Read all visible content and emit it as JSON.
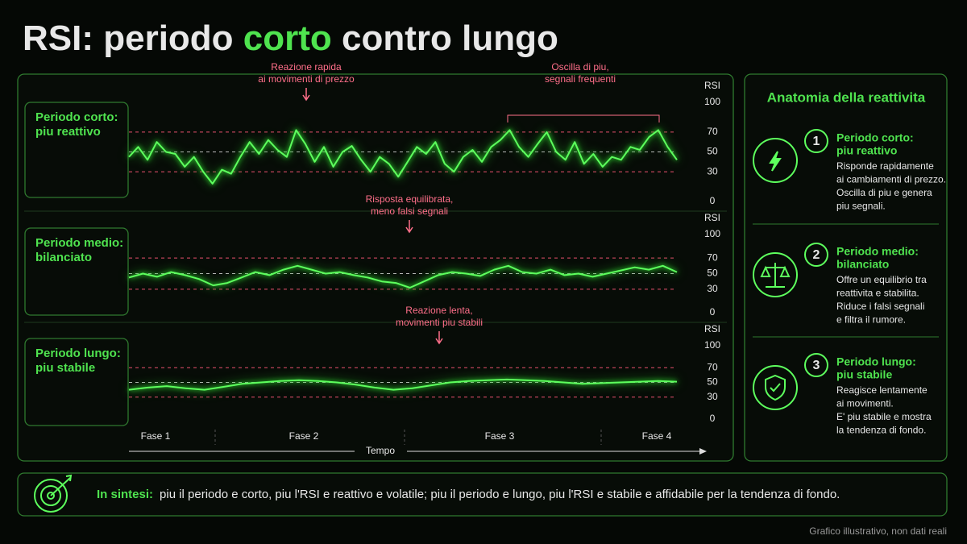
{
  "header": {
    "title_parts": [
      "RSI: periodo ",
      "corto",
      " contro lungo"
    ]
  },
  "chart_data": [
    {
      "type": "line",
      "label": [
        "Periodo corto:",
        "piu reattivo"
      ],
      "y_label": "RSI",
      "annotations": [
        [
          "Reazione rapida",
          "ai movimenti di prezzo"
        ],
        [
          "Oscilla di piu,",
          "segnali frequenti"
        ]
      ],
      "ylim": [
        0,
        100
      ],
      "yticks": [
        0,
        30,
        50,
        70,
        100
      ],
      "ref_lines": [
        {
          "value": 70,
          "color": "#e8506e"
        },
        {
          "value": 50,
          "color": "#bbbbbb"
        },
        {
          "value": 30,
          "color": "#e8506e"
        }
      ],
      "series": [
        {
          "color": "#5dff5d",
          "values": [
            45,
            55,
            42,
            60,
            50,
            48,
            35,
            45,
            30,
            18,
            32,
            28,
            45,
            60,
            48,
            62,
            52,
            45,
            72,
            58,
            40,
            55,
            35,
            50,
            56,
            42,
            30,
            45,
            38,
            25,
            40,
            55,
            48,
            60,
            38,
            30,
            45,
            52,
            40,
            55,
            62,
            72,
            55,
            45,
            58,
            70,
            50,
            42,
            60,
            38,
            48,
            35,
            45,
            42,
            55,
            52,
            65,
            72,
            55,
            42
          ]
        }
      ]
    },
    {
      "type": "line",
      "label": [
        "Periodo medio:",
        "bilanciato"
      ],
      "y_label": "RSI",
      "annotations": [
        [
          "Risposta equilibrata,",
          "meno falsi segnali"
        ]
      ],
      "ylim": [
        0,
        100
      ],
      "yticks": [
        0,
        30,
        50,
        70,
        100
      ],
      "ref_lines": [
        {
          "value": 70,
          "color": "#e8506e"
        },
        {
          "value": 50,
          "color": "#bbbbbb"
        },
        {
          "value": 30,
          "color": "#e8506e"
        }
      ],
      "series": [
        {
          "color": "#5dff5d",
          "values": [
            45,
            50,
            46,
            52,
            48,
            43,
            35,
            38,
            45,
            52,
            48,
            55,
            60,
            55,
            50,
            52,
            48,
            45,
            40,
            38,
            32,
            40,
            48,
            52,
            50,
            47,
            55,
            60,
            52,
            50,
            55,
            48,
            50,
            46,
            50,
            54,
            58,
            55,
            60,
            52
          ]
        }
      ]
    },
    {
      "type": "line",
      "label": [
        "Periodo lungo:",
        "piu stabile"
      ],
      "y_label": "RSI",
      "annotations": [
        [
          "Reazione lenta,",
          "movimenti piu stabili"
        ]
      ],
      "ylim": [
        0,
        100
      ],
      "yticks": [
        0,
        30,
        50,
        70,
        100
      ],
      "ref_lines": [
        {
          "value": 70,
          "color": "#e8506e"
        },
        {
          "value": 50,
          "color": "#bbbbbb"
        },
        {
          "value": 30,
          "color": "#e8506e"
        }
      ],
      "series": [
        {
          "color": "#5dff5d",
          "values": [
            40,
            43,
            45,
            42,
            40,
            44,
            48,
            50,
            52,
            53,
            52,
            50,
            47,
            43,
            40,
            42,
            46,
            50,
            52,
            53,
            54,
            53,
            52,
            50,
            48,
            49,
            50,
            51,
            52,
            51
          ]
        }
      ]
    }
  ],
  "x_axis": {
    "phases": [
      "Fase 1",
      "Fase 2",
      "Fase 3",
      "Fase 4"
    ],
    "label": "Tempo"
  },
  "sidebar": {
    "title": "Anatomia della reattivita",
    "items": [
      {
        "number": "1",
        "title": [
          "Periodo corto:",
          "piu reattivo"
        ],
        "text": [
          "Risponde rapidamente",
          "ai cambiamenti di prezzo.",
          "Oscilla di piu e genera",
          "piu segnali."
        ]
      },
      {
        "number": "2",
        "title": [
          "Periodo medio:",
          "bilanciato"
        ],
        "text": [
          "Offre un equilibrio tra",
          "reattivita e stabilita.",
          "Riduce i falsi segnali",
          "e filtra il rumore."
        ]
      },
      {
        "number": "3",
        "title": [
          "Periodo lungo:",
          "piu stabile"
        ],
        "text": [
          "Reagisce lentamente",
          "ai movimenti.",
          "E' piu stabile e mostra",
          "la tendenza di fondo."
        ]
      }
    ]
  },
  "summary": {
    "label": "In sintesi:",
    "text": "piu il periodo e corto, piu l'RSI e reattivo e volatile; piu il periodo e lungo, piu l'RSI e stabile e affidabile per la tendenza di fondo."
  },
  "footnote": "Grafico illustrativo, non dati reali"
}
